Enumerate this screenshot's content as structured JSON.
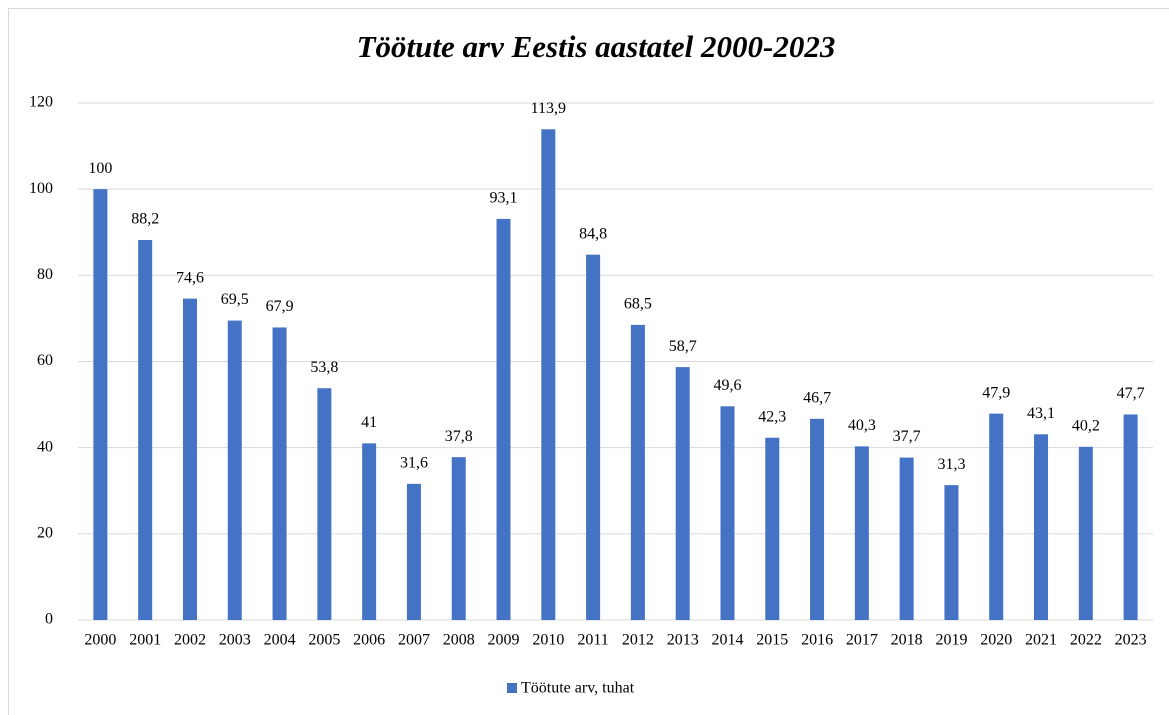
{
  "chart_data": {
    "type": "bar",
    "title": "Töötute arv Eestis aastatel 2000-2023",
    "categories": [
      "2000",
      "2001",
      "2002",
      "2003",
      "2004",
      "2005",
      "2006",
      "2007",
      "2008",
      "2009",
      "2010",
      "2011",
      "2012",
      "2013",
      "2014",
      "2015",
      "2016",
      "2017",
      "2018",
      "2019",
      "2020",
      "2021",
      "2022",
      "2023"
    ],
    "series": [
      {
        "name": "Töötute arv, tuhat",
        "color": "#4472c4",
        "values": [
          100,
          88.2,
          74.6,
          69.5,
          67.9,
          53.8,
          41,
          31.6,
          37.8,
          93.1,
          113.9,
          84.8,
          68.5,
          58.7,
          49.6,
          42.3,
          46.7,
          40.3,
          37.7,
          31.3,
          47.9,
          43.1,
          40.2,
          47.7
        ],
        "value_labels": [
          "100",
          "88,2",
          "74,6",
          "69,5",
          "67,9",
          "53,8",
          "41",
          "31,6",
          "37,8",
          "93,1",
          "113,9",
          "84,8",
          "68,5",
          "58,7",
          "49,6",
          "42,3",
          "46,7",
          "40,3",
          "37,7",
          "31,3",
          "47,9",
          "43,1",
          "40,2",
          "47,7"
        ]
      }
    ],
    "ylim": [
      0,
      120
    ],
    "yticks": [
      0,
      20,
      40,
      60,
      80,
      100,
      120
    ],
    "grid": true,
    "legend": "bottom"
  }
}
